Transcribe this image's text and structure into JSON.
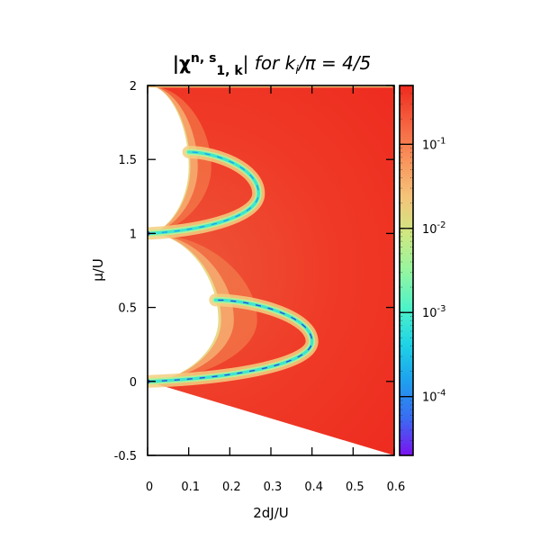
{
  "chart_data": {
    "type": "heatmap",
    "title": {
      "chi": "|χ",
      "sup_ns": "n, s",
      "sub_1k": "1, k",
      "bar": "|",
      "italic": " for k",
      "sub_i": "i",
      "rest": "/π = 4/5"
    },
    "xlabel": "2dJ/U",
    "ylabel": "μ/U",
    "xlim": [
      0,
      0.6
    ],
    "ylim": [
      -0.5,
      2
    ],
    "x_ticks": [
      {
        "value": 0,
        "label": "0"
      },
      {
        "value": 0.1,
        "label": "0.1"
      },
      {
        "value": 0.2,
        "label": "0.2"
      },
      {
        "value": 0.3,
        "label": "0.3"
      },
      {
        "value": 0.4,
        "label": "0.4"
      },
      {
        "value": 0.5,
        "label": "0.5"
      },
      {
        "value": 0.6,
        "label": "0.6"
      }
    ],
    "y_ticks": [
      {
        "value": -0.5,
        "label": "-0.5"
      },
      {
        "value": 0,
        "label": "0"
      },
      {
        "value": 0.5,
        "label": "0.5"
      },
      {
        "value": 1,
        "label": "1"
      },
      {
        "value": 1.5,
        "label": "1.5"
      },
      {
        "value": 2,
        "label": "2"
      }
    ],
    "colorbar": {
      "scale": "log",
      "range": [
        2e-05,
        0.5
      ],
      "colors": [
        "#7a12f0",
        "#3a6cf2",
        "#1ea0ee",
        "#1fd3e6",
        "#4ff3c8",
        "#96f5a0",
        "#cfe882",
        "#f5c37a",
        "#f8935c",
        "#f5603f",
        "#ee2a1e"
      ],
      "ticks": [
        {
          "value": 0.0001,
          "base": "10",
          "exp": "-4"
        },
        {
          "value": 0.001,
          "base": "10",
          "exp": "-3"
        },
        {
          "value": 0.01,
          "base": "10",
          "exp": "-2"
        },
        {
          "value": 0.1,
          "base": "10",
          "exp": "-1"
        }
      ]
    },
    "mott_lobes": [
      {
        "n": 0,
        "mu_range": [
          0,
          1
        ],
        "tip_J": 0.172,
        "tip_mu": 0.414
      },
      {
        "n": 1,
        "mu_range": [
          1,
          2
        ],
        "tip_J": 0.1,
        "tip_mu": 1.45
      }
    ],
    "features": {
      "upper_boundary_mu": 2,
      "lower_boundary": {
        "from": [
          0,
          0
        ],
        "to": [
          0.6,
          -0.5
        ]
      },
      "minima_arcs": [
        {
          "near_lobe_n": 0,
          "from": [
            0.005,
            0
          ],
          "peak": [
            0.4,
            0.27
          ],
          "to": [
            0.165,
            0.55
          ],
          "value": 0.0001
        },
        {
          "near_lobe_n": 1,
          "from": [
            0.005,
            1
          ],
          "peak": [
            0.27,
            1.27
          ],
          "to": [
            0.1,
            1.55
          ],
          "value": 0.001
        }
      ],
      "background_value": 0.3
    }
  }
}
